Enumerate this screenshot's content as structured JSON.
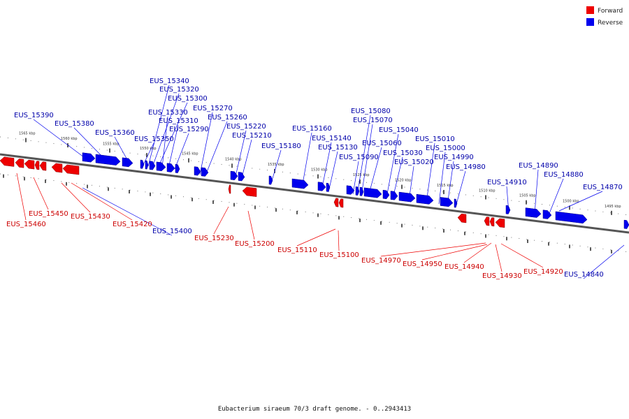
{
  "legend": {
    "forward_label": "Forward",
    "reverse_label": "Reverse",
    "forward_color": "#ee0000",
    "reverse_color": "#0000ee"
  },
  "caption": "Eubacterium siraeum 70/3 draft genome. - 0..2943413",
  "position_unit": "kbp",
  "reverse_ticks": [
    "1565 kbp",
    "1560 kbp",
    "1555 kbp",
    "1550 kbp",
    "1545 kbp",
    "1540 kbp",
    "1535 kbp",
    "1530 kbp",
    "1525 kbp",
    "1520 kbp",
    "1515 kbp"
  ],
  "forward_ticks": [
    "1510 kbp",
    "1505 kbp",
    "1500 kbp",
    "1495 kbp"
  ],
  "reverse_gene_labels": [
    "EUS_15390",
    "EUS_15380",
    "EUS_15360",
    "EUS_15350",
    "EUS_15340",
    "EUS_15320",
    "EUS_15300",
    "EUS_15330",
    "EUS_15310",
    "EUS_15290",
    "EUS_15270",
    "EUS_15260",
    "EUS_15220",
    "EUS_15210",
    "EUS_15180",
    "EUS_15160",
    "EUS_15140",
    "EUS_15130",
    "EUS_15090",
    "EUS_15080",
    "EUS_15070",
    "EUS_15060",
    "EUS_15040",
    "EUS_15030",
    "EUS_15020",
    "EUS_15010",
    "EUS_15000",
    "EUS_14990",
    "EUS_14980",
    "EUS_14910",
    "EUS_14890",
    "EUS_14880",
    "EUS_14870",
    "EUS_15400",
    "EUS_14840"
  ],
  "forward_gene_labels": [
    "EUS_15450",
    "EUS_15460",
    "EUS_15430",
    "EUS_15420",
    "EUS_15230",
    "EUS_15200",
    "EUS_15110",
    "EUS_15100",
    "EUS_14970",
    "EUS_14950",
    "EUS_14940",
    "EUS_14930",
    "EUS_14920"
  ]
}
